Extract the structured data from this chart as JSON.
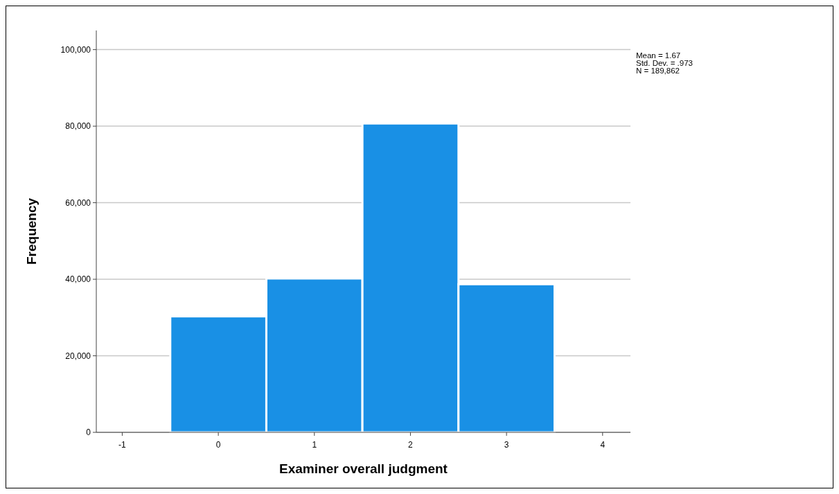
{
  "chart_data": {
    "type": "histogram",
    "xlabel": "Examiner overall judgment",
    "ylabel": "Frequency",
    "bins": [
      -0.5,
      0.5,
      1.5,
      2.5,
      3.5
    ],
    "values": [
      30300,
      40200,
      80700,
      38700
    ],
    "color": "#1990e5",
    "xlim": [
      -1.27,
      4.29
    ],
    "xticks": [
      -1,
      0,
      1,
      2,
      3,
      4
    ],
    "ylim": [
      0,
      105000
    ],
    "yticks": [
      0,
      {
        "value": 20000,
        "label": "20,000"
      },
      {
        "value": 40000,
        "label": "40,000"
      },
      {
        "value": 60000,
        "label": "60,000"
      },
      {
        "value": 80000,
        "label": "80,000"
      },
      {
        "value": 100000,
        "label": "100,000"
      }
    ],
    "grid": "y",
    "annotations": [
      "Mean = 1.67",
      "Std. Dev. = .973",
      "N = 189,862"
    ]
  }
}
